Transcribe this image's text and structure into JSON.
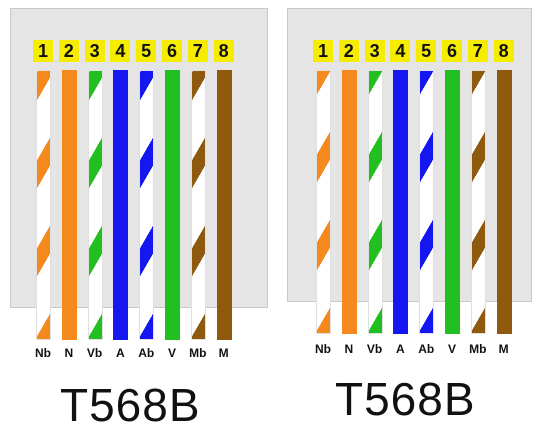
{
  "diagrams": [
    {
      "standard": "T568B",
      "pins": [
        {
          "num": "1",
          "label": "Nb",
          "color": "#f48a1e",
          "striped": true
        },
        {
          "num": "2",
          "label": "N",
          "color": "#f48a1e",
          "striped": false
        },
        {
          "num": "3",
          "label": "Vb",
          "color": "#21c020",
          "striped": true
        },
        {
          "num": "4",
          "label": "A",
          "color": "#1616f0",
          "striped": false
        },
        {
          "num": "5",
          "label": "Ab",
          "color": "#1616f0",
          "striped": true
        },
        {
          "num": "6",
          "label": "V",
          "color": "#21c020",
          "striped": false
        },
        {
          "num": "7",
          "label": "Mb",
          "color": "#8f5a0d",
          "striped": true
        },
        {
          "num": "8",
          "label": "M",
          "color": "#8f5a0d",
          "striped": false
        }
      ]
    },
    {
      "standard": "T568B",
      "pins": [
        {
          "num": "1",
          "label": "Nb",
          "color": "#f48a1e",
          "striped": true
        },
        {
          "num": "2",
          "label": "N",
          "color": "#f48a1e",
          "striped": false
        },
        {
          "num": "3",
          "label": "Vb",
          "color": "#21c020",
          "striped": true
        },
        {
          "num": "4",
          "label": "A",
          "color": "#1616f0",
          "striped": false
        },
        {
          "num": "5",
          "label": "Ab",
          "color": "#1616f0",
          "striped": true
        },
        {
          "num": "6",
          "label": "V",
          "color": "#21c020",
          "striped": false
        },
        {
          "num": "7",
          "label": "Mb",
          "color": "#8f5a0d",
          "striped": true
        },
        {
          "num": "8",
          "label": "M",
          "color": "#8f5a0d",
          "striped": false
        }
      ]
    }
  ]
}
